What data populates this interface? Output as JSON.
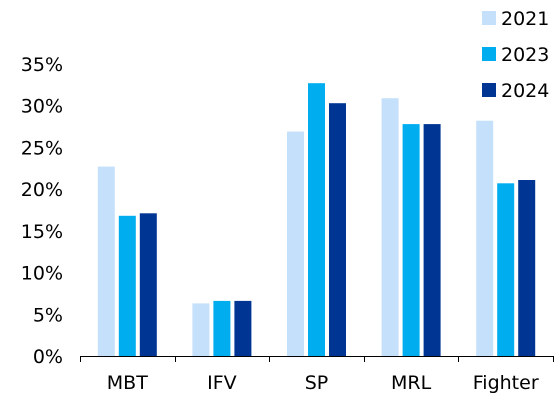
{
  "chart_data": {
    "type": "bar",
    "title": "",
    "xlabel": "",
    "ylabel": "",
    "categories": [
      "MBT",
      "IFV",
      "SP",
      "MRL",
      "Fighter"
    ],
    "series": [
      {
        "name": "2021",
        "color": "#c5e0fa",
        "values": [
          22.7,
          6.3,
          26.9,
          30.9,
          28.2
        ]
      },
      {
        "name": "2023",
        "color": "#00adef",
        "values": [
          16.8,
          6.6,
          32.7,
          27.8,
          20.7
        ]
      },
      {
        "name": "2024",
        "color": "#003594",
        "values": [
          17.1,
          6.6,
          30.3,
          27.8,
          21.1
        ]
      }
    ],
    "ylim": [
      0,
      35
    ],
    "yticks": [
      0,
      5,
      10,
      15,
      20,
      25,
      30,
      35
    ],
    "ytick_labels": [
      "0%",
      "5%",
      "10%",
      "15%",
      "20%",
      "25%",
      "30%",
      "35%"
    ],
    "grid": false,
    "legend_position": "top-right"
  }
}
